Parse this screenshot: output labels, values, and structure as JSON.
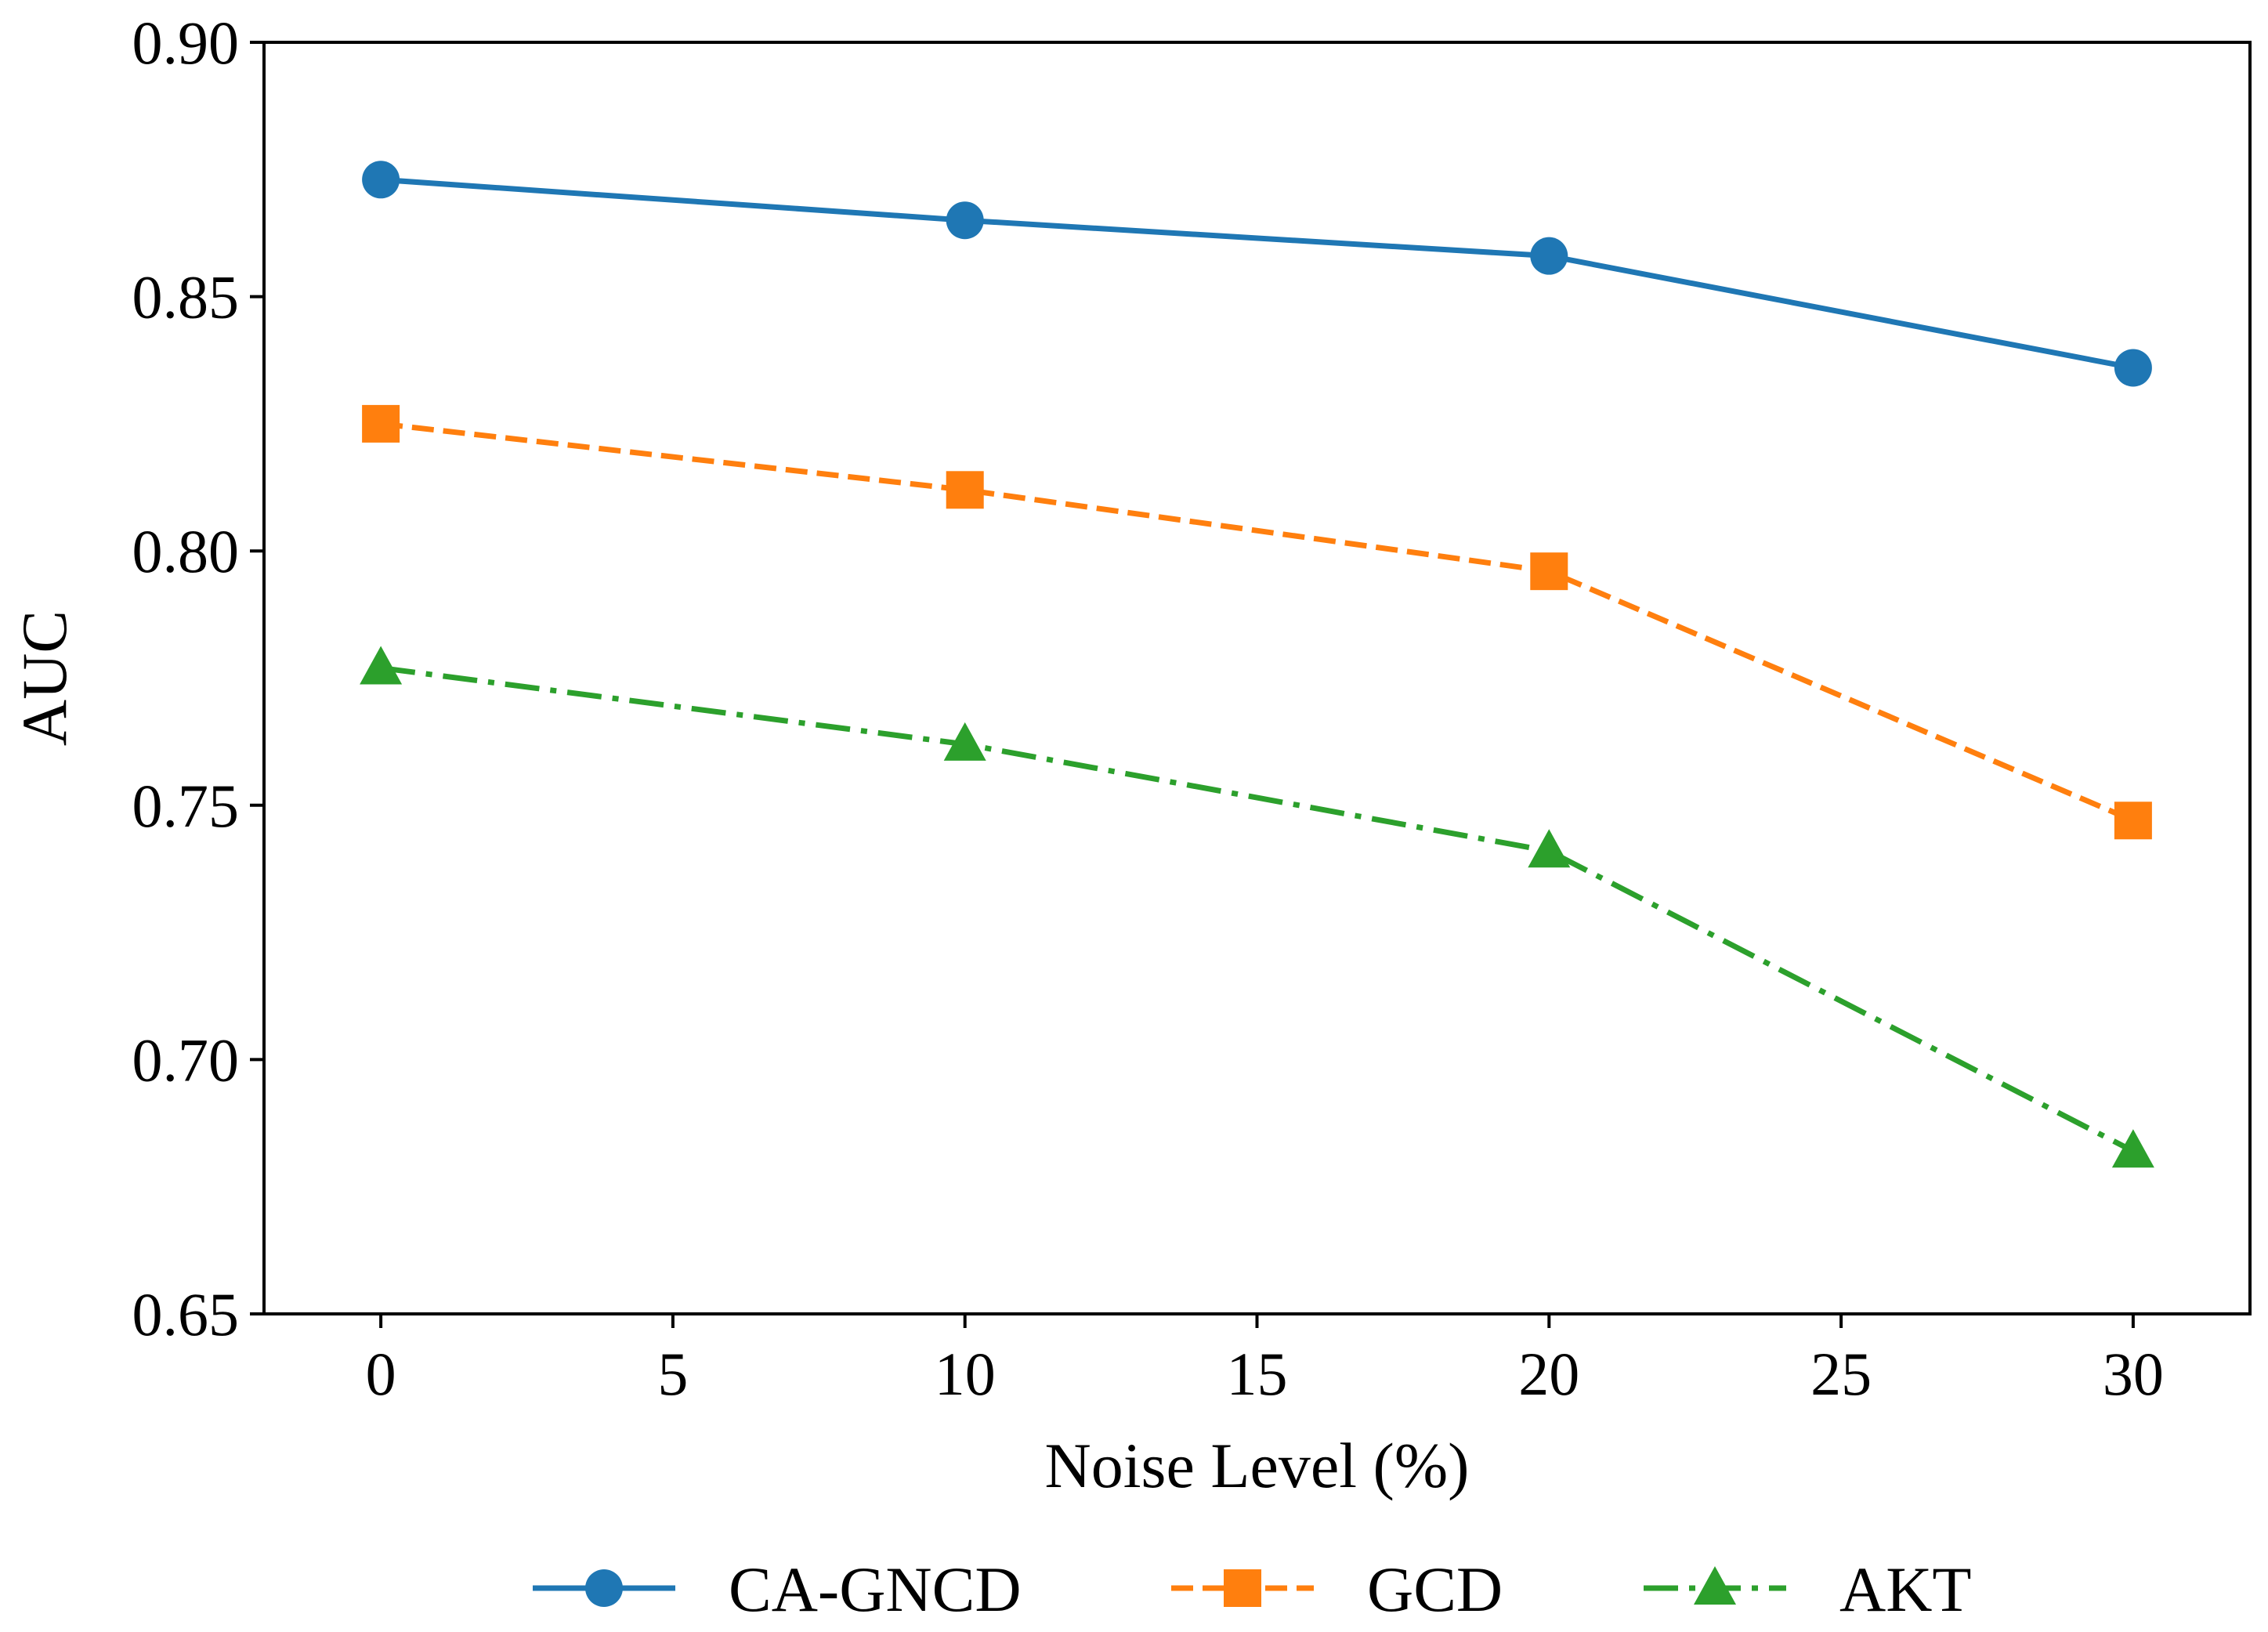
{
  "chart_data": {
    "type": "line",
    "title": "",
    "xlabel": "Noise Level (%)",
    "ylabel": "AUC",
    "xlim": [
      -2,
      32
    ],
    "ylim": [
      0.65,
      0.9
    ],
    "x_ticks": [
      0,
      5,
      10,
      15,
      20,
      25,
      30
    ],
    "x_tick_labels": [
      "0",
      "5",
      "10",
      "15",
      "20",
      "25",
      "30"
    ],
    "y_ticks": [
      0.65,
      0.7,
      0.75,
      0.8,
      0.85,
      0.9
    ],
    "y_tick_labels": [
      "0.65",
      "0.70",
      "0.75",
      "0.80",
      "0.85",
      "0.90"
    ],
    "grid": false,
    "legend_position": "bottom",
    "x": [
      0,
      10,
      20,
      30
    ],
    "series": [
      {
        "name": "CA-GNCD",
        "values": [
          0.873,
          0.865,
          0.858,
          0.836
        ],
        "color": "#1f77b4",
        "marker": "circle",
        "linestyle": "solid"
      },
      {
        "name": "GCD",
        "values": [
          0.825,
          0.812,
          0.796,
          0.747
        ],
        "color": "#ff7f0e",
        "marker": "square",
        "linestyle": "dashed"
      },
      {
        "name": "AKT",
        "values": [
          0.777,
          0.762,
          0.741,
          0.682
        ],
        "color": "#2ca02c",
        "marker": "triangle",
        "linestyle": "dashdot"
      }
    ]
  }
}
